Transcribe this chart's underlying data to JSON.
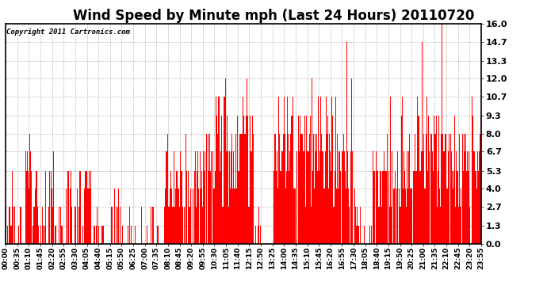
{
  "title": "Wind Speed by Minute mph (Last 24 Hours) 20110720",
  "copyright_text": "Copyright 2011 Cartronics.com",
  "bar_color": "#ff0000",
  "background_color": "#ffffff",
  "plot_bg_color": "#ffffff",
  "grid_color": "#bbbbbb",
  "ylim": [
    0,
    16.0
  ],
  "yticks": [
    0.0,
    1.3,
    2.7,
    4.0,
    5.3,
    6.7,
    8.0,
    9.3,
    10.7,
    12.0,
    13.3,
    14.7,
    16.0
  ],
  "xtick_labels": [
    "00:00",
    "00:35",
    "01:10",
    "01:45",
    "02:20",
    "02:55",
    "03:30",
    "04:05",
    "04:40",
    "05:15",
    "05:50",
    "06:25",
    "07:00",
    "07:35",
    "08:10",
    "08:45",
    "09:20",
    "09:55",
    "10:30",
    "11:05",
    "11:40",
    "12:15",
    "12:50",
    "13:25",
    "14:00",
    "14:35",
    "15:10",
    "15:45",
    "16:20",
    "16:55",
    "17:30",
    "18:05",
    "18:40",
    "19:15",
    "19:50",
    "20:25",
    "21:00",
    "21:35",
    "22:10",
    "22:45",
    "23:20",
    "23:55"
  ],
  "title_fontsize": 12,
  "tick_fontsize": 6.5,
  "copyright_fontsize": 6.5,
  "figsize": [
    6.9,
    3.75
  ],
  "dpi": 100
}
